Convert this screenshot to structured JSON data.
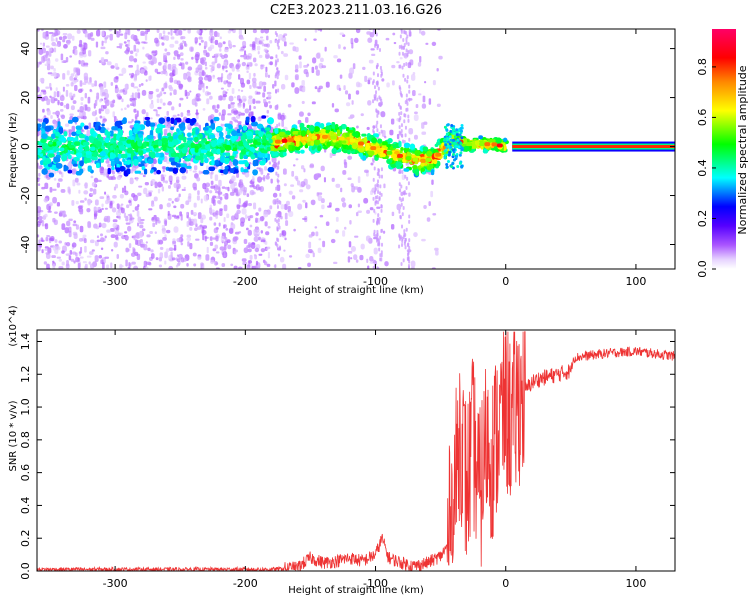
{
  "title": "C2E3.2023.211.03.16.G26",
  "chart_data": [
    {
      "type": "heatmap",
      "xlabel": "Height of straight line (km)",
      "ylabel": "Frequency (Hz)",
      "xlim": [
        -360,
        130
      ],
      "ylim": [
        -50,
        48
      ],
      "x_ticks": [
        -300,
        -200,
        -100,
        0,
        100
      ],
      "y_ticks": [
        -40,
        -20,
        0,
        20,
        40
      ],
      "colorbar": {
        "label": "Normalized spectral amplitude",
        "range": [
          0,
          0.95
        ],
        "ticks": [
          0.0,
          0.2,
          0.4,
          0.6,
          0.8
        ],
        "colormap": [
          "#ffffff",
          "#e6d2ff",
          "#aa55ff",
          "#5500ff",
          "#0000ff",
          "#00ffff",
          "#00ff00",
          "#ffff00",
          "#ff8800",
          "#ff0000",
          "#ff0066"
        ]
      },
      "ridge_frequency_hz": [
        [
          -360,
          0
        ],
        [
          -300,
          0
        ],
        [
          -250,
          0
        ],
        [
          -200,
          0
        ],
        [
          -175,
          2
        ],
        [
          -160,
          3
        ],
        [
          -140,
          4
        ],
        [
          -120,
          3
        ],
        [
          -100,
          -1
        ],
        [
          -80,
          -4
        ],
        [
          -65,
          -6
        ],
        [
          -55,
          -5
        ],
        [
          -40,
          3
        ],
        [
          -30,
          1
        ],
        [
          -20,
          1
        ],
        [
          -10,
          1
        ],
        [
          0,
          0
        ],
        [
          130,
          0
        ]
      ]
    },
    {
      "type": "line",
      "xlabel": "Height of straight line (km)",
      "ylabel": "SNR (10 * v/v)",
      "y_multiplier": "(x10^4)",
      "xlim": [
        -360,
        130
      ],
      "ylim": [
        0,
        1.47
      ],
      "x_ticks": [
        -300,
        -200,
        -100,
        0,
        100
      ],
      "y_ticks": [
        0.0,
        0.2,
        0.4,
        0.6,
        0.8,
        1.0,
        1.2,
        1.4
      ],
      "color": "#ee3333",
      "series": [
        {
          "x": [
            -360,
            -320,
            -280,
            -240,
            -200,
            -180,
            -160,
            -150,
            -140,
            -130,
            -120,
            -110,
            -100,
            -95,
            -90,
            -80,
            -70,
            -60,
            -50,
            -45,
            -40,
            -35,
            -30,
            -25,
            -20,
            -15,
            -10,
            -5,
            0,
            5,
            10,
            15,
            20,
            25,
            30,
            40,
            50,
            52,
            60,
            80,
            100,
            120,
            130
          ],
          "y": [
            0.01,
            0.01,
            0.01,
            0.01,
            0.01,
            0.01,
            0.02,
            0.08,
            0.05,
            0.06,
            0.08,
            0.06,
            0.1,
            0.2,
            0.08,
            0.05,
            0.03,
            0.05,
            0.09,
            0.15,
            0.4,
            0.9,
            0.5,
            0.8,
            0.45,
            0.8,
            0.7,
            0.9,
            1.0,
            0.9,
            1.05,
            1.1,
            1.15,
            1.17,
            1.18,
            1.2,
            1.22,
            1.3,
            1.31,
            1.33,
            1.34,
            1.32,
            1.31
          ]
        }
      ]
    }
  ]
}
